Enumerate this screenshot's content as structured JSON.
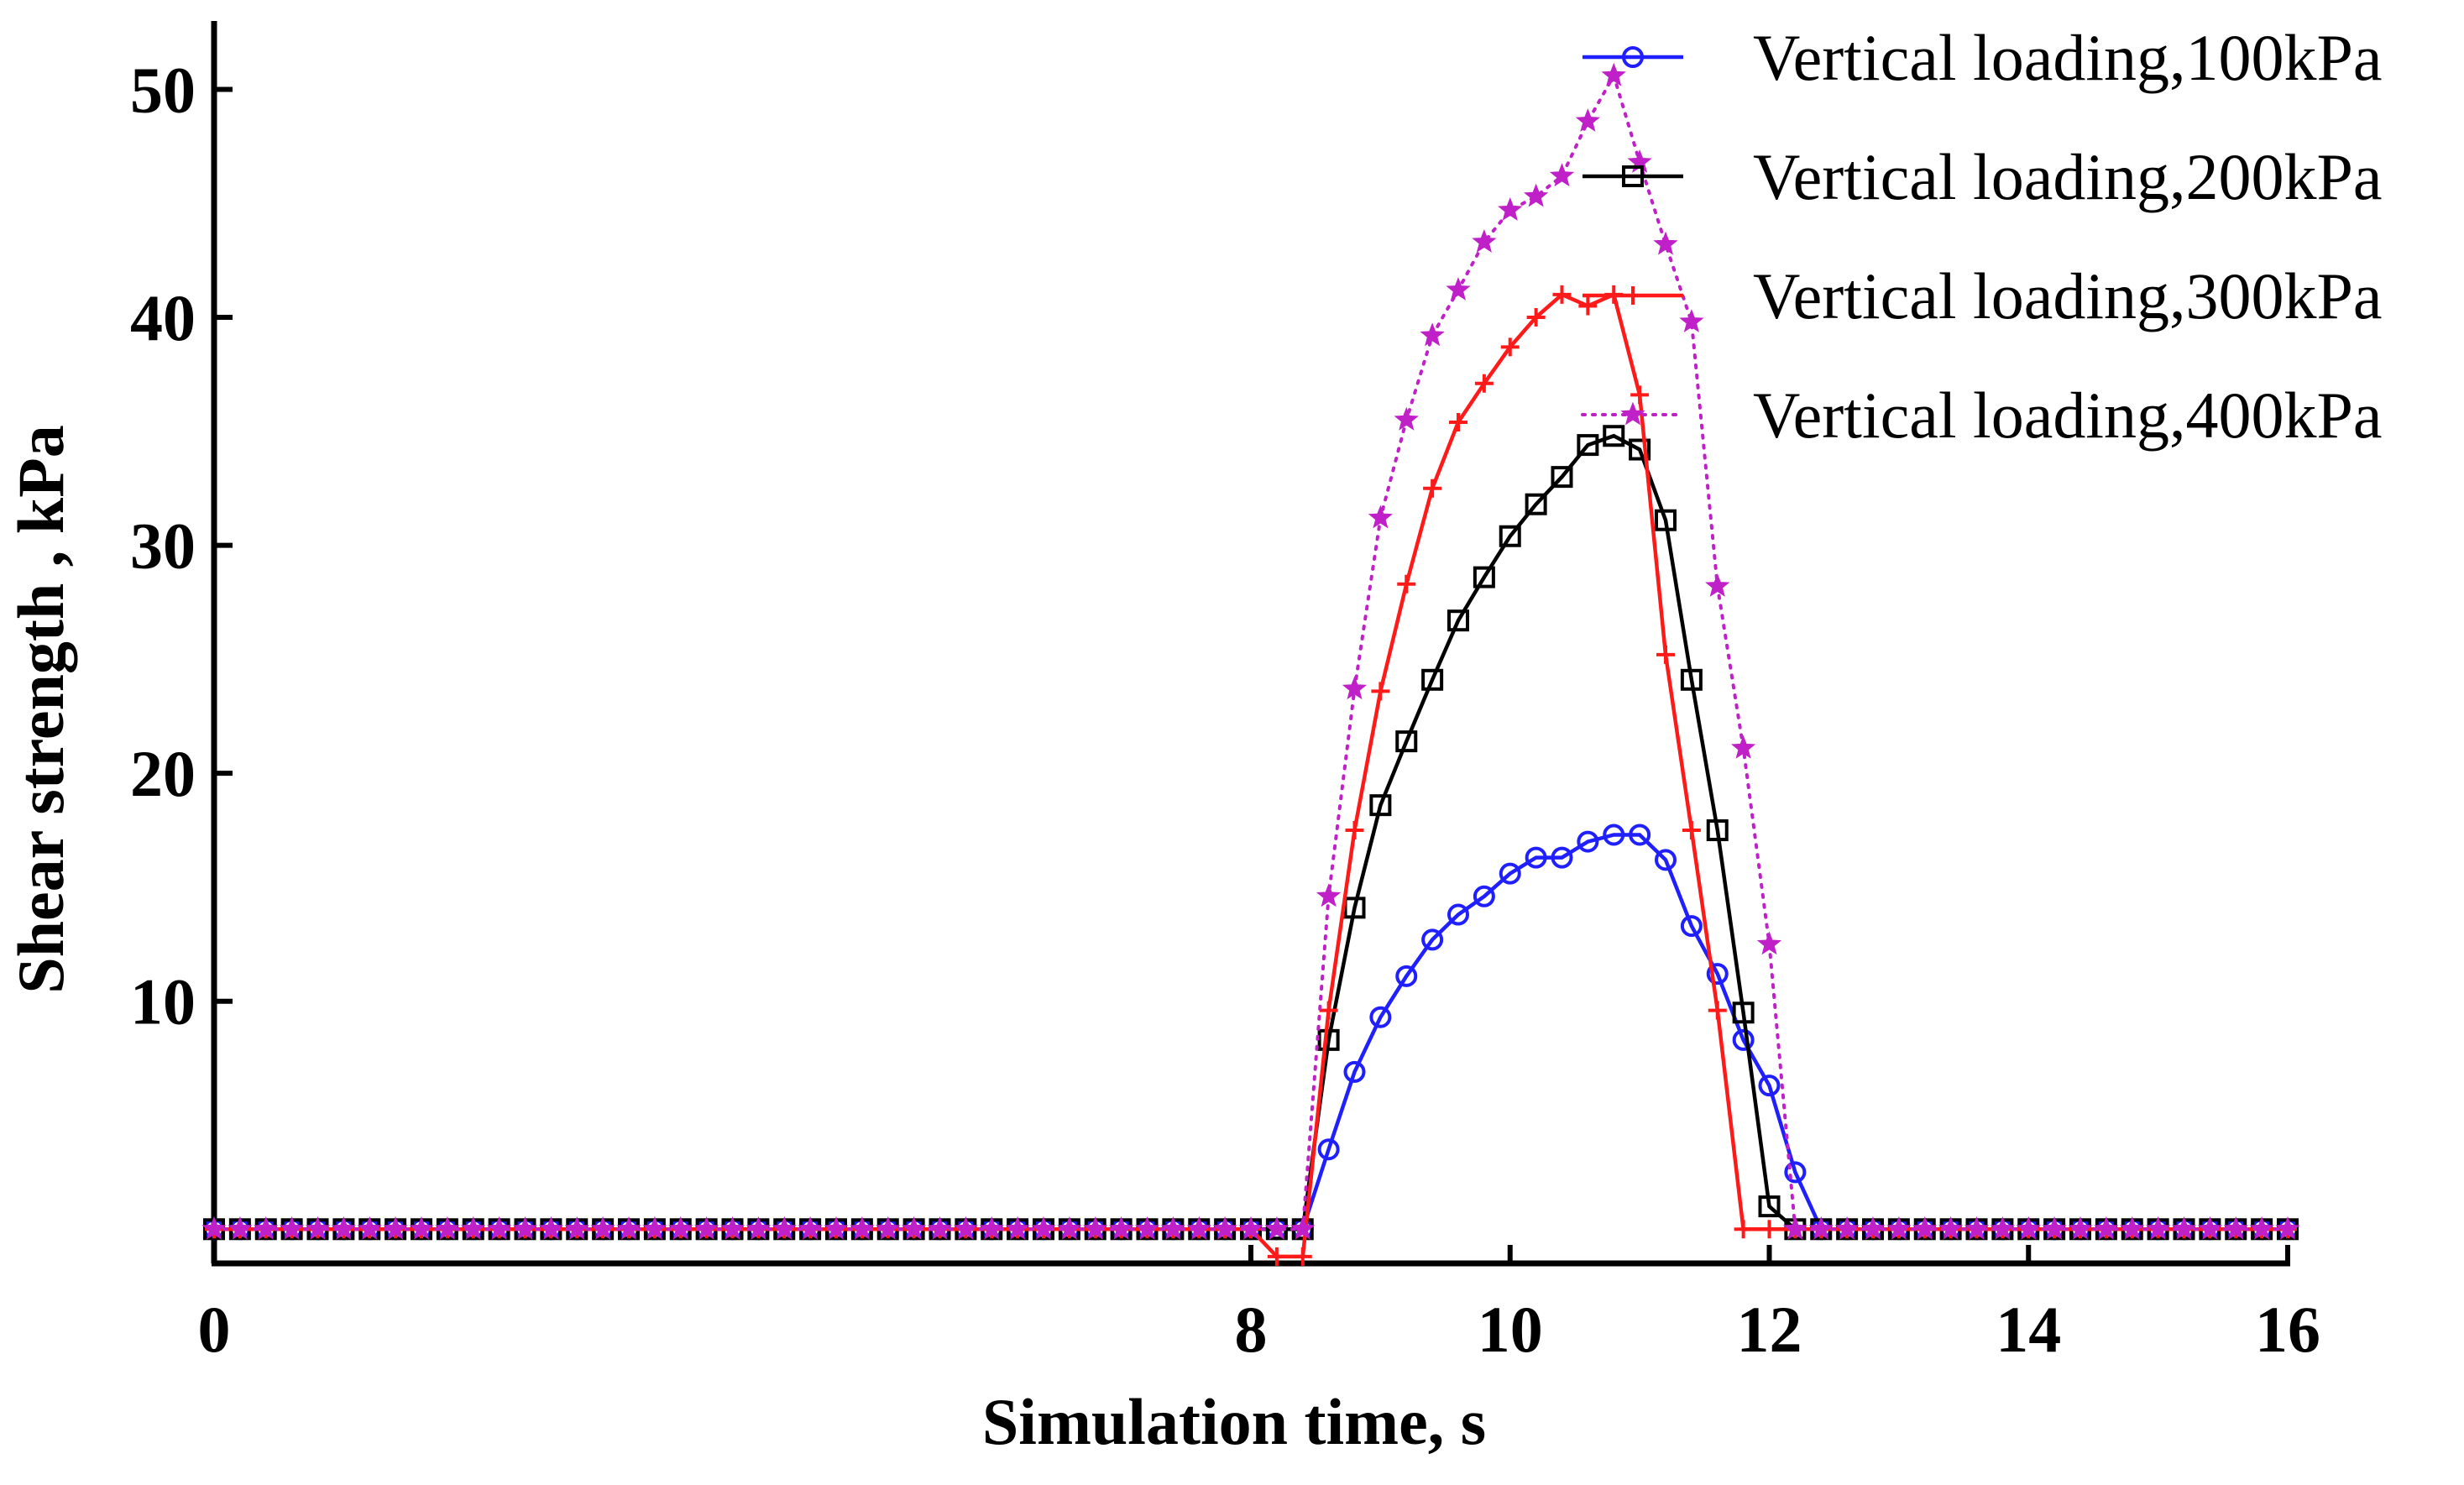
{
  "chart_data": {
    "type": "line",
    "title": "",
    "xlabel": "Simulation time, s",
    "ylabel": "Shear strength , kPa",
    "xlim": [
      0,
      16
    ],
    "ylim": [
      -1.5,
      53
    ],
    "x_ticks": [
      0,
      8,
      10,
      12,
      14,
      16
    ],
    "x_tick_labels": [
      "0",
      "8",
      "10",
      "12",
      "14",
      "16"
    ],
    "y_ticks": [
      10,
      20,
      30,
      40,
      50
    ],
    "y_tick_labels": [
      "10",
      "20",
      "30",
      "40",
      "50"
    ],
    "grid": false,
    "legend_position": "top-right",
    "series": [
      {
        "name": "Vertical loading,100kPa",
        "color": "#1f1fff",
        "marker": "circle",
        "dash": "solid",
        "x": [
          0,
          0.2,
          0.4,
          0.6,
          0.8,
          1,
          1.2,
          1.4,
          1.6,
          1.8,
          2,
          2.2,
          2.4,
          2.6,
          2.8,
          3,
          3.2,
          3.4,
          3.6,
          3.8,
          4,
          4.2,
          4.4,
          4.6,
          4.8,
          5,
          5.2,
          5.4,
          5.6,
          5.8,
          6,
          6.2,
          6.4,
          6.6,
          6.8,
          7,
          7.2,
          7.4,
          7.6,
          7.8,
          8,
          8.2,
          8.4,
          8.6,
          8.8,
          9,
          9.2,
          9.4,
          9.6,
          9.8,
          10,
          10.2,
          10.4,
          10.6,
          10.8,
          11,
          11.2,
          11.4,
          11.6,
          11.8,
          12,
          12.2,
          12.4,
          12.6,
          12.8,
          13,
          13.2,
          13.4,
          13.6,
          13.8,
          14,
          14.2,
          14.4,
          14.6,
          14.8,
          15,
          15.2,
          15.4,
          15.6,
          15.8,
          16
        ],
        "values": [
          0,
          0,
          0,
          0,
          0,
          0,
          0,
          0,
          0,
          0,
          0,
          0,
          0,
          0,
          0,
          0,
          0,
          0,
          0,
          0,
          0,
          0,
          0,
          0,
          0,
          0,
          0,
          0,
          0,
          0,
          0,
          0,
          0,
          0,
          0,
          0,
          0,
          0,
          0,
          0,
          0,
          0,
          0,
          3.5,
          6.9,
          9.3,
          11.1,
          12.7,
          13.8,
          14.6,
          15.6,
          16.3,
          16.3,
          17.0,
          17.3,
          17.3,
          16.2,
          13.3,
          11.2,
          8.3,
          6.3,
          2.5,
          0,
          0,
          0,
          0,
          0,
          0,
          0,
          0,
          0,
          0,
          0,
          0,
          0,
          0,
          0,
          0,
          0,
          0,
          0
        ]
      },
      {
        "name": "Vertical loading,200kPa",
        "color": "#000000",
        "marker": "square",
        "dash": "solid",
        "x": [
          0,
          0.2,
          0.4,
          0.6,
          0.8,
          1,
          1.2,
          1.4,
          1.6,
          1.8,
          2,
          2.2,
          2.4,
          2.6,
          2.8,
          3,
          3.2,
          3.4,
          3.6,
          3.8,
          4,
          4.2,
          4.4,
          4.6,
          4.8,
          5,
          5.2,
          5.4,
          5.6,
          5.8,
          6,
          6.2,
          6.4,
          6.6,
          6.8,
          7,
          7.2,
          7.4,
          7.6,
          7.8,
          8,
          8.2,
          8.4,
          8.6,
          8.8,
          9,
          9.2,
          9.4,
          9.6,
          9.8,
          10,
          10.2,
          10.4,
          10.6,
          10.8,
          11,
          11.2,
          11.4,
          11.6,
          11.8,
          12,
          12.2,
          12.4,
          12.6,
          12.8,
          13,
          13.2,
          13.4,
          13.6,
          13.8,
          14,
          14.2,
          14.4,
          14.6,
          14.8,
          15,
          15.2,
          15.4,
          15.6,
          15.8,
          16
        ],
        "values": [
          0,
          0,
          0,
          0,
          0,
          0,
          0,
          0,
          0,
          0,
          0,
          0,
          0,
          0,
          0,
          0,
          0,
          0,
          0,
          0,
          0,
          0,
          0,
          0,
          0,
          0,
          0,
          0,
          0,
          0,
          0,
          0,
          0,
          0,
          0,
          0,
          0,
          0,
          0,
          0,
          0,
          0,
          0,
          8.3,
          14.1,
          18.6,
          21.4,
          24.1,
          26.7,
          28.6,
          30.4,
          31.8,
          33.0,
          34.4,
          34.8,
          34.2,
          31.1,
          24.1,
          17.5,
          9.5,
          1.0,
          0,
          0,
          0,
          0,
          0,
          0,
          0,
          0,
          0,
          0,
          0,
          0,
          0,
          0,
          0,
          0,
          0,
          0,
          0,
          0
        ]
      },
      {
        "name": "Vertical loading,300kPa",
        "color": "#ff1a1a",
        "marker": "plus",
        "dash": "solid",
        "x": [
          0,
          0.2,
          0.4,
          0.6,
          0.8,
          1,
          1.2,
          1.4,
          1.6,
          1.8,
          2,
          2.2,
          2.4,
          2.6,
          2.8,
          3,
          3.2,
          3.4,
          3.6,
          3.8,
          4,
          4.2,
          4.4,
          4.6,
          4.8,
          5,
          5.2,
          5.4,
          5.6,
          5.8,
          6,
          6.2,
          6.4,
          6.6,
          6.8,
          7,
          7.2,
          7.4,
          7.6,
          7.8,
          8,
          8.2,
          8.4,
          8.6,
          8.8,
          9,
          9.2,
          9.4,
          9.6,
          9.8,
          10,
          10.2,
          10.4,
          10.6,
          10.8,
          11,
          11.2,
          11.4,
          11.6,
          11.8,
          12,
          12.2,
          12.4,
          12.6,
          12.8,
          13,
          13.2,
          13.4,
          13.6,
          13.8,
          14,
          14.2,
          14.4,
          14.6,
          14.8,
          15,
          15.2,
          15.4,
          15.6,
          15.8,
          16
        ],
        "values": [
          0,
          0,
          0,
          0,
          0,
          0,
          0,
          0,
          0,
          0,
          0,
          0,
          0,
          0,
          0,
          0,
          0,
          0,
          0,
          0,
          0,
          0,
          0,
          0,
          0,
          0,
          0,
          0,
          0,
          0,
          0,
          0,
          0,
          0,
          0,
          0,
          0,
          0,
          0,
          0,
          0,
          -1.2,
          -1.2,
          9.6,
          17.5,
          23.6,
          28.3,
          32.5,
          35.4,
          37.1,
          38.7,
          40.0,
          41.0,
          40.5,
          41.0,
          36.6,
          25.2,
          17.5,
          9.6,
          0,
          0,
          0,
          0,
          0,
          0,
          0,
          0,
          0,
          0,
          0,
          0,
          0,
          0,
          0,
          0,
          0,
          0,
          0,
          0,
          0,
          0
        ]
      },
      {
        "name": "Vertical loading,400kPa",
        "color": "#c020c8",
        "marker": "star",
        "dash": "dotted",
        "x": [
          0,
          0.2,
          0.4,
          0.6,
          0.8,
          1,
          1.2,
          1.4,
          1.6,
          1.8,
          2,
          2.2,
          2.4,
          2.6,
          2.8,
          3,
          3.2,
          3.4,
          3.6,
          3.8,
          4,
          4.2,
          4.4,
          4.6,
          4.8,
          5,
          5.2,
          5.4,
          5.6,
          5.8,
          6,
          6.2,
          6.4,
          6.6,
          6.8,
          7,
          7.2,
          7.4,
          7.6,
          7.8,
          8,
          8.2,
          8.4,
          8.6,
          8.8,
          9,
          9.2,
          9.4,
          9.6,
          9.8,
          10,
          10.2,
          10.4,
          10.6,
          10.8,
          11,
          11.2,
          11.4,
          11.6,
          11.8,
          12,
          12.2,
          12.4,
          12.6,
          12.8,
          13,
          13.2,
          13.4,
          13.6,
          13.8,
          14,
          14.2,
          14.4,
          14.6,
          14.8,
          15,
          15.2,
          15.4,
          15.6,
          15.8,
          16
        ],
        "values": [
          0,
          0,
          0,
          0,
          0,
          0,
          0,
          0,
          0,
          0,
          0,
          0,
          0,
          0,
          0,
          0,
          0,
          0,
          0,
          0,
          0,
          0,
          0,
          0,
          0,
          0,
          0,
          0,
          0,
          0,
          0,
          0,
          0,
          0,
          0,
          0,
          0,
          0,
          0,
          0,
          0,
          0,
          0,
          14.6,
          23.7,
          31.2,
          35.5,
          39.2,
          41.2,
          43.3,
          44.7,
          45.3,
          46.2,
          48.6,
          50.6,
          46.8,
          43.2,
          39.8,
          28.2,
          21.1,
          12.5,
          0,
          0,
          0,
          0,
          0,
          0,
          0,
          0,
          0,
          0,
          0,
          0,
          0,
          0,
          0,
          0,
          0,
          0,
          0,
          0
        ]
      }
    ]
  }
}
